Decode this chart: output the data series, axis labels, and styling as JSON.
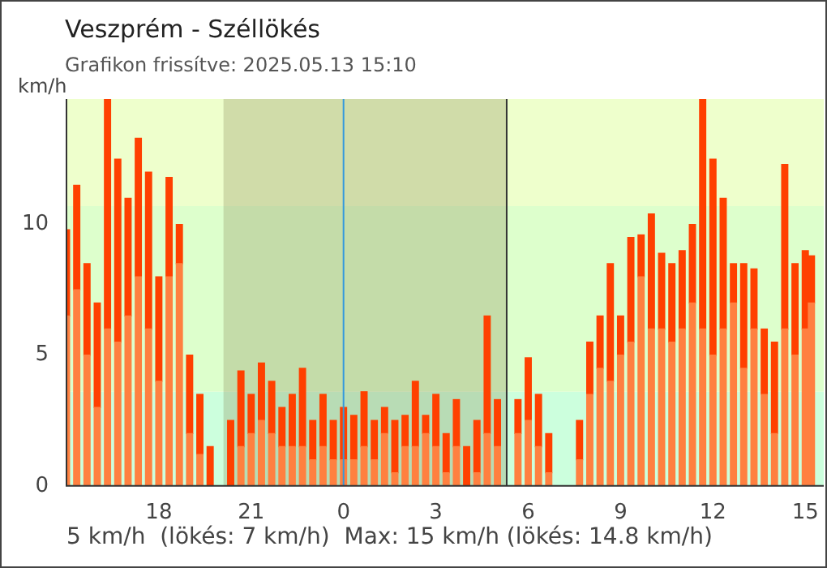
{
  "chart_data": {
    "type": "bar",
    "stacked": true,
    "title": "Veszprém  - Széllökés",
    "subtitle": "Grafikon frissítve: 2025.05.13 15:10",
    "ylabel": "km/h",
    "x": [
      "2025-05-12T15:00",
      "2025-05-12T15:20",
      "2025-05-12T15:40",
      "2025-05-12T16:00",
      "2025-05-12T16:20",
      "2025-05-12T16:40",
      "2025-05-12T17:00",
      "2025-05-12T17:20",
      "2025-05-12T17:40",
      "2025-05-12T18:00",
      "2025-05-12T18:20",
      "2025-05-12T18:40",
      "2025-05-12T19:00",
      "2025-05-12T19:20",
      "2025-05-12T19:40",
      "2025-05-12T20:00",
      "2025-05-12T20:20",
      "2025-05-12T20:40",
      "2025-05-12T21:00",
      "2025-05-12T21:20",
      "2025-05-12T21:40",
      "2025-05-12T22:00",
      "2025-05-12T22:20",
      "2025-05-12T22:40",
      "2025-05-12T23:00",
      "2025-05-12T23:20",
      "2025-05-12T23:40",
      "2025-05-13T00:00",
      "2025-05-13T00:20",
      "2025-05-13T00:40",
      "2025-05-13T01:00",
      "2025-05-13T01:20",
      "2025-05-13T01:40",
      "2025-05-13T02:00",
      "2025-05-13T02:20",
      "2025-05-13T02:40",
      "2025-05-13T03:00",
      "2025-05-13T03:20",
      "2025-05-13T03:40",
      "2025-05-13T04:00",
      "2025-05-13T04:20",
      "2025-05-13T04:40",
      "2025-05-13T05:00",
      "2025-05-13T05:20",
      "2025-05-13T05:40",
      "2025-05-13T06:00",
      "2025-05-13T06:20",
      "2025-05-13T06:40",
      "2025-05-13T07:00",
      "2025-05-13T07:20",
      "2025-05-13T07:40",
      "2025-05-13T08:00",
      "2025-05-13T08:20",
      "2025-05-13T08:40",
      "2025-05-13T09:00",
      "2025-05-13T09:20",
      "2025-05-13T09:40",
      "2025-05-13T10:00",
      "2025-05-13T10:20",
      "2025-05-13T10:40",
      "2025-05-13T11:00",
      "2025-05-13T11:20",
      "2025-05-13T11:40",
      "2025-05-13T12:00",
      "2025-05-13T12:20",
      "2025-05-13T12:40",
      "2025-05-13T13:00",
      "2025-05-13T13:20",
      "2025-05-13T13:40",
      "2025-05-13T14:00",
      "2025-05-13T14:20",
      "2025-05-13T14:40",
      "2025-05-13T15:00",
      "2025-05-13T15:12"
    ],
    "series": [
      {
        "color": "#ff8040",
        "values": [
          6.5,
          7.5,
          5,
          3,
          6,
          5.5,
          6.5,
          8,
          6,
          4,
          8,
          8.5,
          2,
          1.2,
          0,
          0,
          0,
          1.5,
          2,
          2.5,
          2,
          1.5,
          1.5,
          1.5,
          1,
          1.5,
          1,
          1,
          1,
          1.5,
          1,
          2,
          0.5,
          1.5,
          1.5,
          2,
          1.5,
          0.5,
          1.5,
          0,
          0.5,
          2,
          1.5,
          0,
          2,
          2.5,
          1.5,
          0.5,
          0,
          0,
          1,
          3.5,
          4.5,
          4,
          5,
          5.5,
          8,
          6,
          6,
          5.5,
          6,
          7,
          6,
          5,
          6,
          7,
          4.5,
          6,
          3.5,
          2,
          6,
          5,
          6,
          7
        ]
      },
      {
        "color": "#ff4000",
        "values": [
          3.3,
          4,
          3.5,
          4,
          8.8,
          7,
          4.5,
          5.3,
          6,
          4,
          3.8,
          1.5,
          3,
          2.3,
          1.5,
          0,
          2.5,
          2.9,
          1.5,
          2.2,
          2,
          1.5,
          2,
          3,
          1.5,
          2,
          1.5,
          2,
          1.7,
          2.1,
          1.5,
          1,
          2,
          1.2,
          2.5,
          0.7,
          2,
          1.5,
          1.8,
          1.5,
          2,
          4.5,
          1.8,
          0,
          1.3,
          2.4,
          2,
          1.5,
          0,
          0,
          1.5,
          2,
          2,
          4.5,
          1.5,
          4,
          1.6,
          4.4,
          2.9,
          3,
          3,
          3,
          8.8,
          7.5,
          5,
          1.5,
          4,
          2.3,
          2.5,
          3.5,
          6.3,
          3.5,
          3,
          1.8
        ]
      }
    ],
    "xlim": [
      "2025-05-12T15:00",
      "2025-05-13T15:36"
    ],
    "xticks": [
      {
        "value": "2025-05-12T15:00",
        "label": null
      },
      {
        "value": "2025-05-12T18:00",
        "label": "18"
      },
      {
        "value": "2025-05-12T21:00",
        "label": "21"
      },
      {
        "value": "2025-05-13T00:00",
        "label": "0"
      },
      {
        "value": "2025-05-13T03:00",
        "label": "3"
      },
      {
        "value": "2025-05-13T06:00",
        "label": "6"
      },
      {
        "value": "2025-05-13T09:00",
        "label": "9"
      },
      {
        "value": "2025-05-13T12:00",
        "label": "12"
      },
      {
        "value": "2025-05-13T15:00",
        "label": "15"
      }
    ],
    "ylim": [
      0,
      14.8
    ],
    "yticks": [
      0,
      5,
      10
    ],
    "bands": [
      {
        "axis": "y",
        "from": 0,
        "to": 3.6,
        "color": "#ccffdd"
      },
      {
        "axis": "y",
        "from": 3.6,
        "to": 10.7,
        "color": "#ddffcc"
      },
      {
        "axis": "y",
        "from": 10.7,
        "to": 14.8,
        "color": "#eeffcc"
      },
      {
        "axis": "x",
        "from": "2025-05-12T20:06",
        "to": "2025-05-13T05:18",
        "color": "#8a8a5a"
      }
    ],
    "ref_lines": [
      {
        "axis": "x",
        "value": "2025-05-13T00:00",
        "color": "#3399dd"
      },
      {
        "axis": "x",
        "value": "2025-05-13T05:18",
        "color": "#333333"
      }
    ],
    "annotations": [
      "5 km/h  (lökés: 7 km/h)  Max: 15 km/h (lökés: 14.8 km/h)"
    ],
    "grid": false,
    "legend": false
  }
}
